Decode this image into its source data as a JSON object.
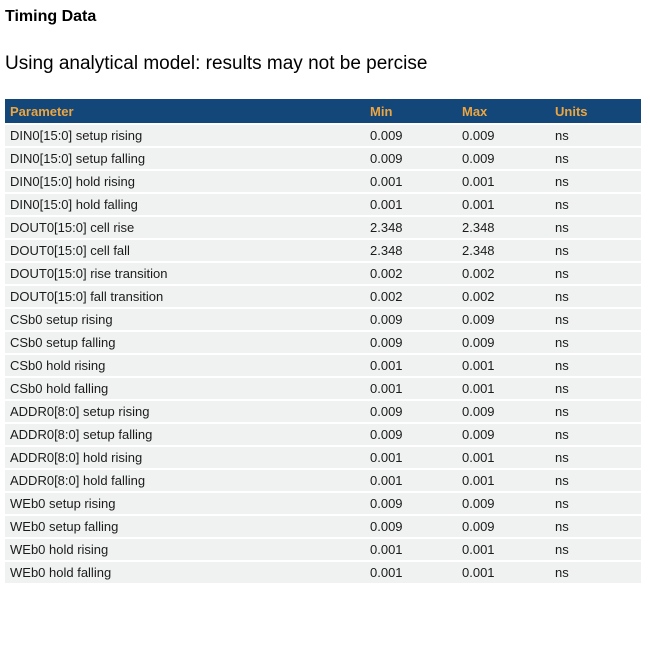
{
  "page": {
    "title": "Timing Data",
    "subtitle": "Using analytical model: results may not be percise"
  },
  "colors": {
    "header_bg": "#134679",
    "header_text": "#eda53f",
    "row_bg": "#f0f1f1"
  },
  "table": {
    "headers": [
      "Parameter",
      "Min",
      "Max",
      "Units"
    ],
    "rows": [
      {
        "parameter": "DIN0[15:0] setup rising",
        "min": "0.009",
        "max": "0.009",
        "units": "ns"
      },
      {
        "parameter": "DIN0[15:0] setup falling",
        "min": "0.009",
        "max": "0.009",
        "units": "ns"
      },
      {
        "parameter": "DIN0[15:0] hold rising",
        "min": "0.001",
        "max": "0.001",
        "units": "ns"
      },
      {
        "parameter": "DIN0[15:0] hold falling",
        "min": "0.001",
        "max": "0.001",
        "units": "ns"
      },
      {
        "parameter": "DOUT0[15:0] cell rise",
        "min": "2.348",
        "max": "2.348",
        "units": "ns"
      },
      {
        "parameter": "DOUT0[15:0] cell fall",
        "min": "2.348",
        "max": "2.348",
        "units": "ns"
      },
      {
        "parameter": "DOUT0[15:0] rise transition",
        "min": "0.002",
        "max": "0.002",
        "units": "ns"
      },
      {
        "parameter": "DOUT0[15:0] fall transition",
        "min": "0.002",
        "max": "0.002",
        "units": "ns"
      },
      {
        "parameter": "CSb0 setup rising",
        "min": "0.009",
        "max": "0.009",
        "units": "ns"
      },
      {
        "parameter": "CSb0 setup falling",
        "min": "0.009",
        "max": "0.009",
        "units": "ns"
      },
      {
        "parameter": "CSb0 hold rising",
        "min": "0.001",
        "max": "0.001",
        "units": "ns"
      },
      {
        "parameter": "CSb0 hold falling",
        "min": "0.001",
        "max": "0.001",
        "units": "ns"
      },
      {
        "parameter": "ADDR0[8:0] setup rising",
        "min": "0.009",
        "max": "0.009",
        "units": "ns"
      },
      {
        "parameter": "ADDR0[8:0] setup falling",
        "min": "0.009",
        "max": "0.009",
        "units": "ns"
      },
      {
        "parameter": "ADDR0[8:0] hold rising",
        "min": "0.001",
        "max": "0.001",
        "units": "ns"
      },
      {
        "parameter": "ADDR0[8:0] hold falling",
        "min": "0.001",
        "max": "0.001",
        "units": "ns"
      },
      {
        "parameter": "WEb0 setup rising",
        "min": "0.009",
        "max": "0.009",
        "units": "ns"
      },
      {
        "parameter": "WEb0 setup falling",
        "min": "0.009",
        "max": "0.009",
        "units": "ns"
      },
      {
        "parameter": "WEb0 hold rising",
        "min": "0.001",
        "max": "0.001",
        "units": "ns"
      },
      {
        "parameter": "WEb0 hold falling",
        "min": "0.001",
        "max": "0.001",
        "units": "ns"
      }
    ]
  }
}
